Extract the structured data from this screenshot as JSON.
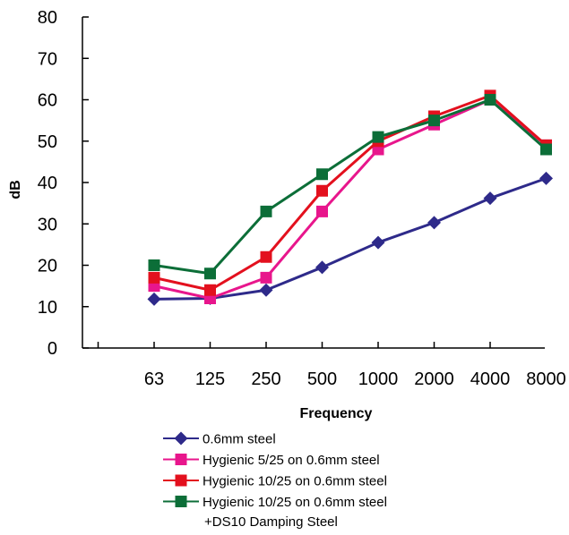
{
  "chart_data": {
    "type": "line",
    "categories": [
      "63",
      "125",
      "250",
      "500",
      "1000",
      "2000",
      "4000",
      "8000"
    ],
    "xlabel": "Frequency",
    "ylabel": "dB",
    "ylim": [
      0,
      80
    ],
    "yticks": [
      "0",
      "10",
      "20",
      "30",
      "40",
      "50",
      "60",
      "70",
      "80"
    ],
    "grid": false,
    "legend_position": "bottom",
    "series": [
      {
        "name": "0.6mm steel",
        "name_line2": "",
        "marker": "diamond",
        "color": "#2e2a8a",
        "values": [
          11.8,
          12,
          14,
          19.5,
          25.5,
          30.3,
          36.2,
          41
        ]
      },
      {
        "name": "Hygienic 5/25 on 0.6mm steel",
        "name_line2": "",
        "marker": "square",
        "color": "#e8168c",
        "values": [
          15,
          12,
          17,
          33,
          48,
          54,
          60,
          49
        ]
      },
      {
        "name": "Hygienic 10/25 on 0.6mm steel",
        "name_line2": "",
        "marker": "square",
        "color": "#e3101e",
        "values": [
          17,
          14,
          22,
          38,
          50,
          56,
          61,
          49
        ]
      },
      {
        "name": "Hygienic 10/25 on 0.6mm steel",
        "name_line2": "+DS10 Damping Steel",
        "marker": "square",
        "color": "#0c6e38",
        "values": [
          20,
          18,
          33,
          42,
          51,
          55,
          60,
          48
        ]
      }
    ]
  }
}
